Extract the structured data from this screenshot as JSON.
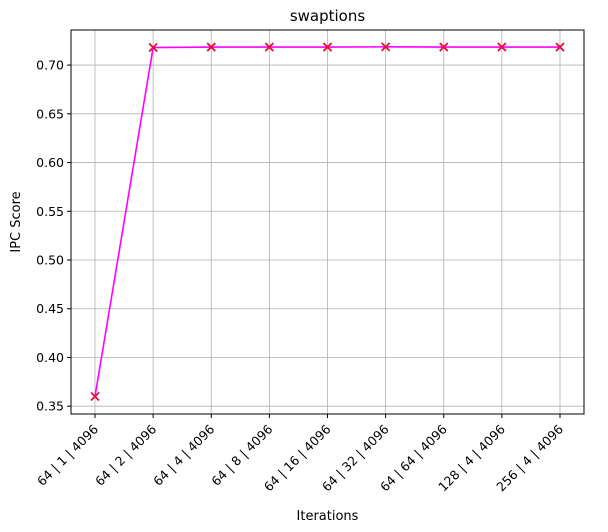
{
  "chart_data": {
    "type": "line",
    "title": "swaptions",
    "xlabel": "Iterations",
    "ylabel": "IPC Score",
    "categories": [
      "64 | 1 | 4096",
      "64 | 2 | 4096",
      "64 | 4 | 4096",
      "64 | 8 | 4096",
      "64 | 16 | 4096",
      "64 | 32 | 4096",
      "64 | 64 | 4096",
      "128 | 4 | 4096",
      "256 | 4 | 4096"
    ],
    "series": [
      {
        "values": [
          0.36,
          0.718,
          0.7185,
          0.7185,
          0.7185,
          0.7187,
          0.7185,
          0.7185,
          0.7185
        ],
        "line_color": "#ff00ff",
        "marker": "x",
        "marker_color": "#e0103c"
      }
    ],
    "ylim": [
      0.342,
      0.736
    ],
    "yticks": [
      0.35,
      0.4,
      0.45,
      0.5,
      0.55,
      0.6,
      0.65,
      0.7
    ],
    "ytick_labels": [
      "0.35",
      "0.40",
      "0.45",
      "0.50",
      "0.55",
      "0.60",
      "0.65",
      "0.70"
    ],
    "grid": true,
    "legend": "none"
  }
}
